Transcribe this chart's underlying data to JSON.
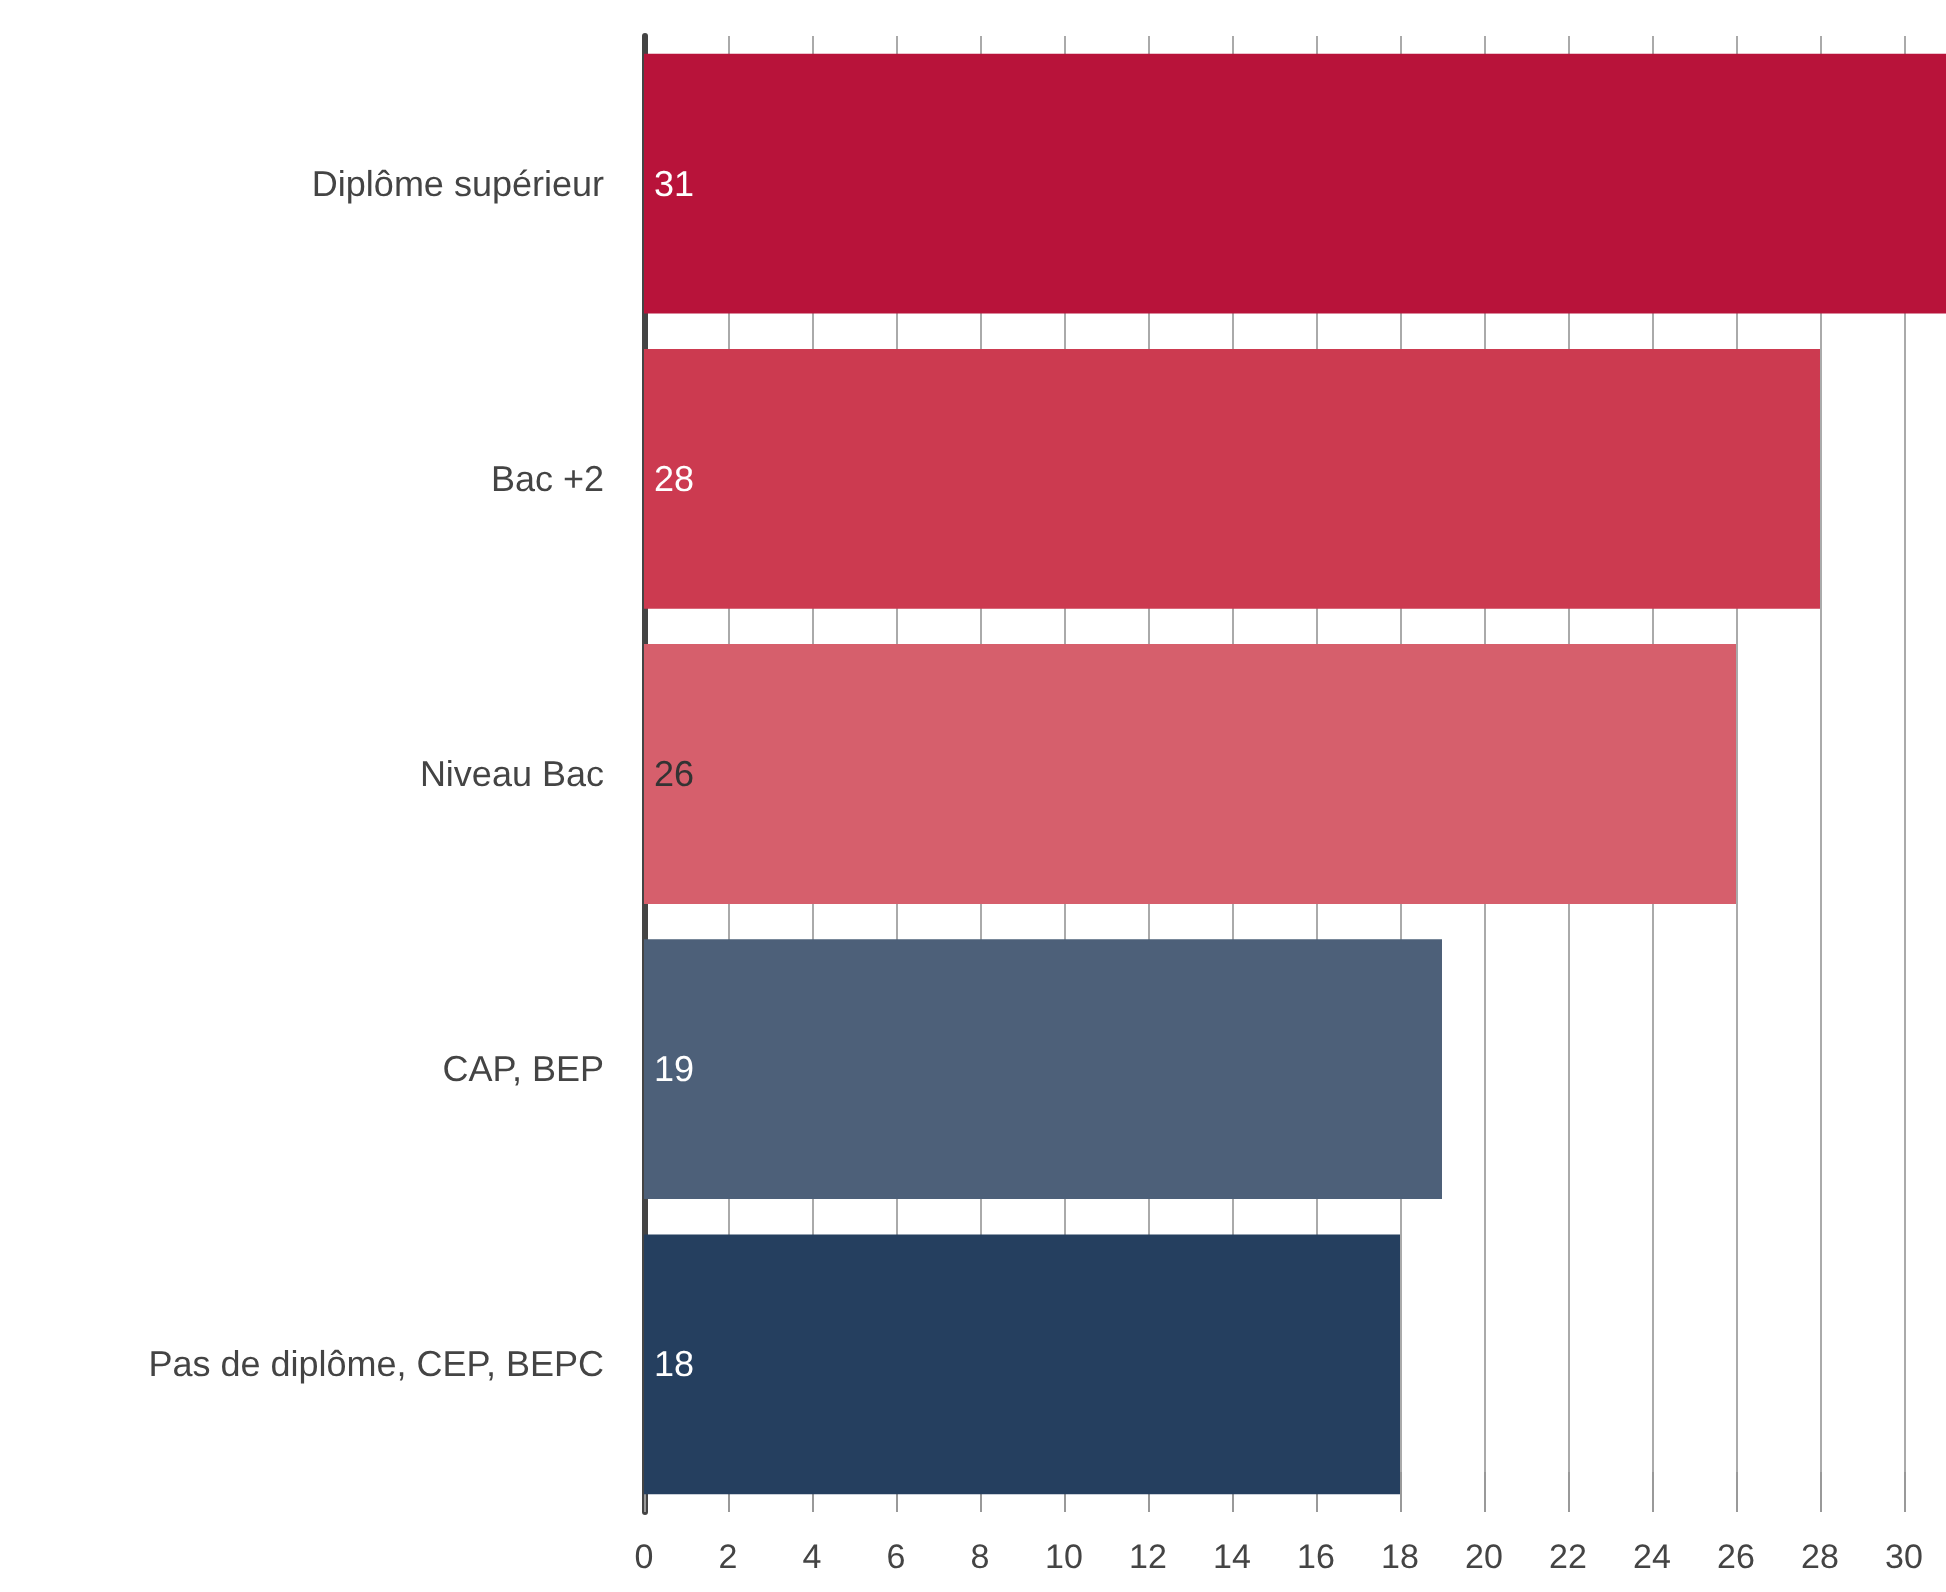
{
  "chart_data": {
    "type": "bar",
    "orientation": "horizontal",
    "categories": [
      "Diplôme supérieur",
      "Bac +2",
      "Niveau Bac",
      "CAP, BEP",
      "Pas de diplôme, CEP, BEPC"
    ],
    "values": [
      31,
      28,
      26,
      19,
      18
    ],
    "colors": [
      "#b8133a",
      "#cc3a50",
      "#d65f6c",
      "#4d6079",
      "#253f5f"
    ],
    "xlim": [
      0,
      31
    ],
    "xticks": [
      0,
      2,
      4,
      6,
      8,
      10,
      12,
      14,
      16,
      18,
      20,
      22,
      24,
      26,
      28,
      30
    ],
    "grid": "x",
    "data_labels": true
  }
}
